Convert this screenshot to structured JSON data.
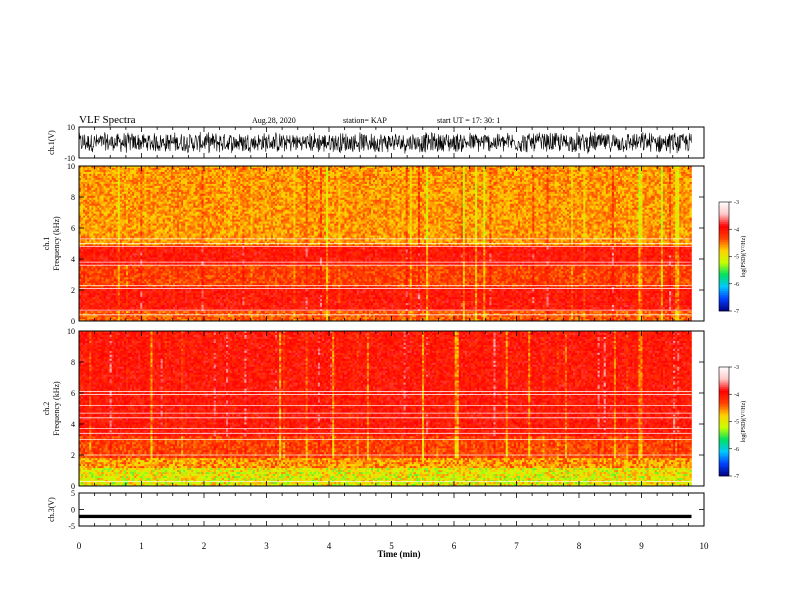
{
  "header": {
    "title": "VLF Spectra",
    "date": "Aug.28, 2020",
    "station": "station= KAP",
    "start": "start  UT =   17: 30: 1"
  },
  "chart_data": [
    {
      "type": "line",
      "panel": "ch1-waveform",
      "ylabel": "ch.1(V)",
      "ylim": [
        -10,
        10
      ],
      "yticks": [
        10,
        -10
      ],
      "xlim": [
        0,
        10
      ],
      "style": "dense noisy black trace filling roughly -8 to 8 V",
      "x_end": 9.8
    },
    {
      "type": "heatmap",
      "panel": "ch1-spectrogram",
      "ylabel": "ch.1\nFrequency (kHz)",
      "ylim": [
        0,
        10
      ],
      "yticks": [
        0,
        2,
        4,
        6,
        8,
        10
      ],
      "xlim": [
        0,
        10
      ],
      "x_end": 9.8,
      "colorbar": {
        "label": "log(PSD)(V²/Hz)",
        "range": [
          -7,
          -3
        ],
        "ticks": [
          -3,
          -4,
          -5,
          -6,
          -7
        ]
      },
      "description_bands_khz": [
        {
          "from": 0,
          "to": 0.6,
          "level": "mixed"
        },
        {
          "from": 0.6,
          "to": 2.2,
          "level": -4.0
        },
        {
          "from": 2.2,
          "to": 3.6,
          "level": -4.3
        },
        {
          "from": 3.6,
          "to": 4.9,
          "level": -4.0
        },
        {
          "from": 4.9,
          "to": 10,
          "level": -4.6
        }
      ]
    },
    {
      "type": "heatmap",
      "panel": "ch2-spectrogram",
      "ylabel": "ch.2\nFrequency (kHz)",
      "ylim": [
        0,
        10
      ],
      "yticks": [
        0,
        2,
        4,
        6,
        8,
        10
      ],
      "xlim": [
        0,
        10
      ],
      "x_end": 9.8,
      "colorbar": {
        "label": "log(PSD)(V²/Hz)",
        "range": [
          -7,
          -3
        ],
        "ticks": [
          -3,
          -4,
          -5,
          -6,
          -7
        ]
      },
      "description_bands_khz": [
        {
          "from": 0,
          "to": 1.8,
          "level": -4.9
        },
        {
          "from": 1.8,
          "to": 3.2,
          "level": -4.3
        },
        {
          "from": 3.2,
          "to": 4.5,
          "level": -4.0
        },
        {
          "from": 4.5,
          "to": 10,
          "level": -4.0
        }
      ]
    },
    {
      "type": "line",
      "panel": "ch3-waveform",
      "ylabel": "ch.3(V)",
      "ylim": [
        -5,
        5
      ],
      "yticks": [
        5,
        0,
        -5
      ],
      "xlim": [
        0,
        10
      ],
      "x_end": 9.8,
      "style": "thick flat band around -2 V"
    }
  ],
  "xaxis": {
    "label": "Time (min)",
    "ticks": [
      "0",
      "1",
      "2",
      "3",
      "4",
      "5",
      "6",
      "7",
      "8",
      "9",
      "10"
    ]
  },
  "colors": {
    "ink": "#000000",
    "colormap": [
      "#000080",
      "#0040ff",
      "#00c8ff",
      "#00e060",
      "#c8ff00",
      "#ffd000",
      "#ff4000",
      "#ff0000",
      "#ffc8c8",
      "#ffffff"
    ]
  }
}
